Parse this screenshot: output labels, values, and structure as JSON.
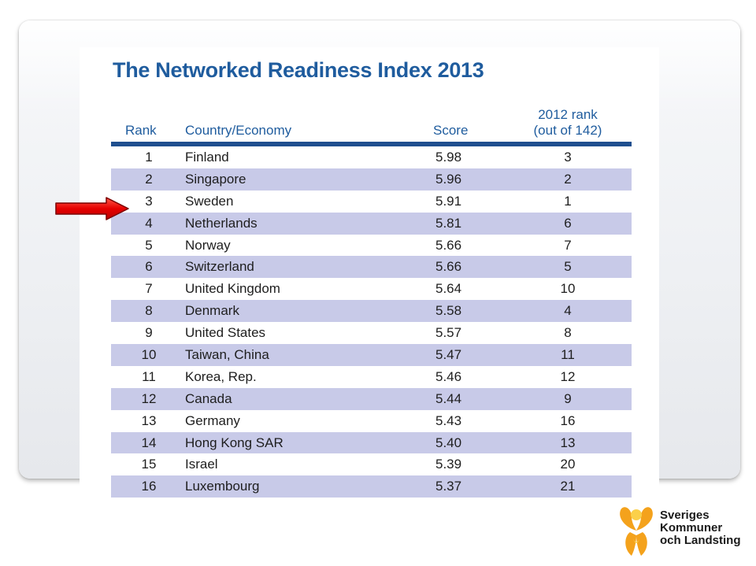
{
  "title": "The Networked Readiness Index 2013",
  "headers": {
    "rank": "Rank",
    "country": "Country/Economy",
    "score": "Score",
    "prev_line1": "2012 rank",
    "prev_line2": "(out of 142)"
  },
  "rows": [
    {
      "rank": "1",
      "country": "Finland",
      "score": "5.98",
      "prev": "3"
    },
    {
      "rank": "2",
      "country": "Singapore",
      "score": "5.96",
      "prev": "2"
    },
    {
      "rank": "3",
      "country": "Sweden",
      "score": "5.91",
      "prev": "1"
    },
    {
      "rank": "4",
      "country": "Netherlands",
      "score": "5.81",
      "prev": "6"
    },
    {
      "rank": "5",
      "country": "Norway",
      "score": "5.66",
      "prev": "7"
    },
    {
      "rank": "6",
      "country": "Switzerland",
      "score": "5.66",
      "prev": "5"
    },
    {
      "rank": "7",
      "country": "United Kingdom",
      "score": "5.64",
      "prev": "10"
    },
    {
      "rank": "8",
      "country": "Denmark",
      "score": "5.58",
      "prev": "4"
    },
    {
      "rank": "9",
      "country": "United States",
      "score": "5.57",
      "prev": "8"
    },
    {
      "rank": "10",
      "country": "Taiwan, China",
      "score": "5.47",
      "prev": "11"
    },
    {
      "rank": "11",
      "country": "Korea, Rep.",
      "score": "5.46",
      "prev": "12"
    },
    {
      "rank": "12",
      "country": "Canada",
      "score": "5.44",
      "prev": "9"
    },
    {
      "rank": "13",
      "country": "Germany",
      "score": "5.43",
      "prev": "16"
    },
    {
      "rank": "14",
      "country": "Hong Kong SAR",
      "score": "5.40",
      "prev": "13"
    },
    {
      "rank": "15",
      "country": "Israel",
      "score": "5.39",
      "prev": "20"
    },
    {
      "rank": "16",
      "country": "Luxembourg",
      "score": "5.37",
      "prev": "21"
    }
  ],
  "highlight": {
    "row_index": 2,
    "icon": "red-arrow-icon",
    "color": "#e00000"
  },
  "colors": {
    "title": "#1f5c9e",
    "header_rule": "#1f4f8f",
    "stripe": "#c8cae8"
  },
  "logo": {
    "line1": "Sveriges",
    "line2": "Kommuner",
    "line3": "och Landsting",
    "colors": {
      "orange": "#f4a21c",
      "yellow": "#fbd04a"
    }
  }
}
